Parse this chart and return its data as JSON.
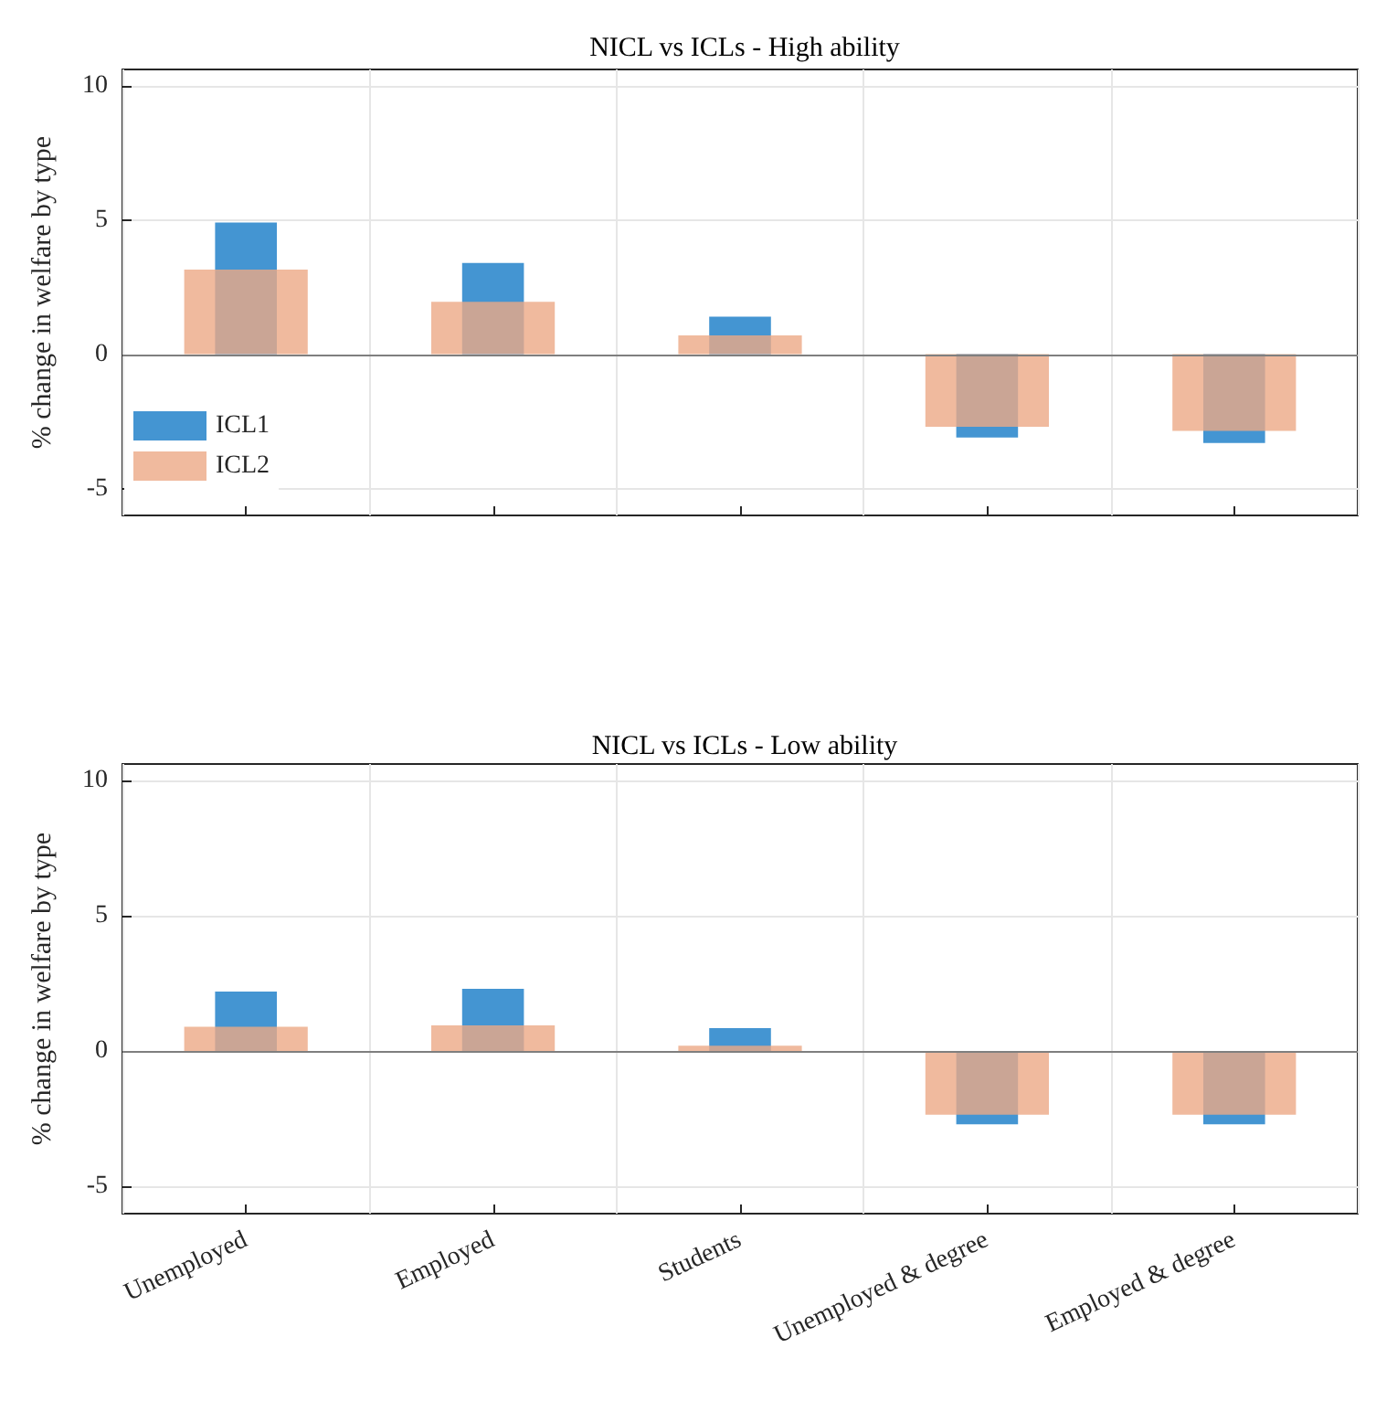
{
  "chart_data": [
    {
      "type": "bar",
      "title": "NICL vs ICLs - High ability",
      "ylabel": "% change in welfare by type",
      "categories": [
        null,
        null,
        null,
        null,
        null
      ],
      "series": [
        {
          "name": "ICL1",
          "color": "#3a8fd0",
          "values": [
            4.9,
            3.4,
            1.4,
            -3.1,
            -3.3
          ]
        },
        {
          "name": "ICL2",
          "color": "#eca986",
          "values": [
            3.15,
            1.95,
            0.7,
            -2.7,
            -2.85
          ]
        }
      ],
      "ylim": [
        -6,
        10.6
      ],
      "yticks": [
        -5,
        0,
        5,
        10
      ],
      "grid": true,
      "legend": "bottom left",
      "tick_labels": "y"
    },
    {
      "type": "bar",
      "title": "NICL vs ICLs - Low ability",
      "ylabel": "% change in welfare by type",
      "categories": [
        "Unemployed",
        "Employed",
        "Students",
        "Unemployed & degree",
        "Employed & degree"
      ],
      "series": [
        {
          "color": "#3a8fd0",
          "values": [
            2.2,
            2.3,
            0.85,
            -2.7,
            -2.7
          ]
        },
        {
          "color": "#eca986",
          "values": [
            0.9,
            0.95,
            0.2,
            -2.35,
            -2.35
          ]
        }
      ],
      "ylim": [
        -6,
        10.6
      ],
      "yticks": [
        -5,
        0,
        5,
        10
      ],
      "grid": true
    }
  ]
}
